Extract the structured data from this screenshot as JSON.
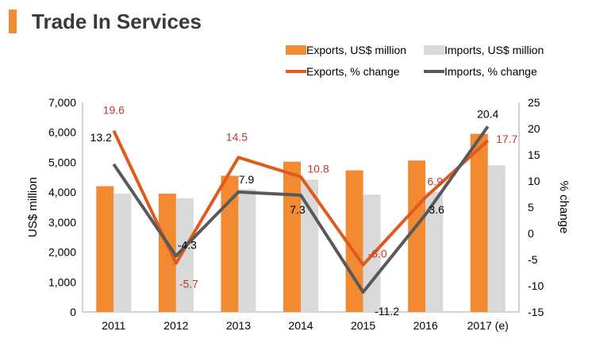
{
  "header": {
    "title": "Trade In Services"
  },
  "chart_data": {
    "type": "bar+line",
    "categories": [
      "2011",
      "2012",
      "2013",
      "2014",
      "2015",
      "2016",
      "2017 (e)"
    ],
    "bar_series": [
      {
        "name": "Exports, US$ million",
        "color": "#f28a32",
        "values": [
          4200,
          3950,
          4550,
          5020,
          4730,
          5060,
          5950
        ]
      },
      {
        "name": "Imports, US$ million",
        "color": "#d9d9d9",
        "values": [
          3950,
          3800,
          4100,
          4420,
          3920,
          4020,
          4900
        ]
      }
    ],
    "line_series": [
      {
        "name": "Exports, % change",
        "color": "#e05a1e",
        "label_color": "#c0392b",
        "values": [
          19.6,
          -5.7,
          14.5,
          10.8,
          -6.0,
          6.9,
          17.7
        ],
        "labels": [
          "19.6",
          "-5.7",
          "14.5",
          "10.8",
          "-6.0",
          "6.9",
          "17.7"
        ]
      },
      {
        "name": "Imports, % change",
        "color": "#595959",
        "label_color": "#000000",
        "values": [
          13.2,
          -4.3,
          7.9,
          7.3,
          -11.2,
          3.6,
          20.4
        ],
        "labels": [
          "13.2",
          "-4.3",
          "7.9",
          "7.3",
          "-11.2",
          "3.6",
          "20.4"
        ]
      }
    ],
    "y_left": {
      "label": "US$ million",
      "min": 0,
      "max": 7000,
      "ticks": [
        "0",
        "1,000",
        "2,000",
        "3,000",
        "4,000",
        "5,000",
        "6,000",
        "7,000"
      ]
    },
    "y_right": {
      "label": "% change",
      "min": -15,
      "max": 25,
      "ticks": [
        "-15",
        "-10",
        "-5",
        "0",
        "5",
        "10",
        "15",
        "20",
        "25"
      ]
    },
    "legend_position": "top-right"
  }
}
